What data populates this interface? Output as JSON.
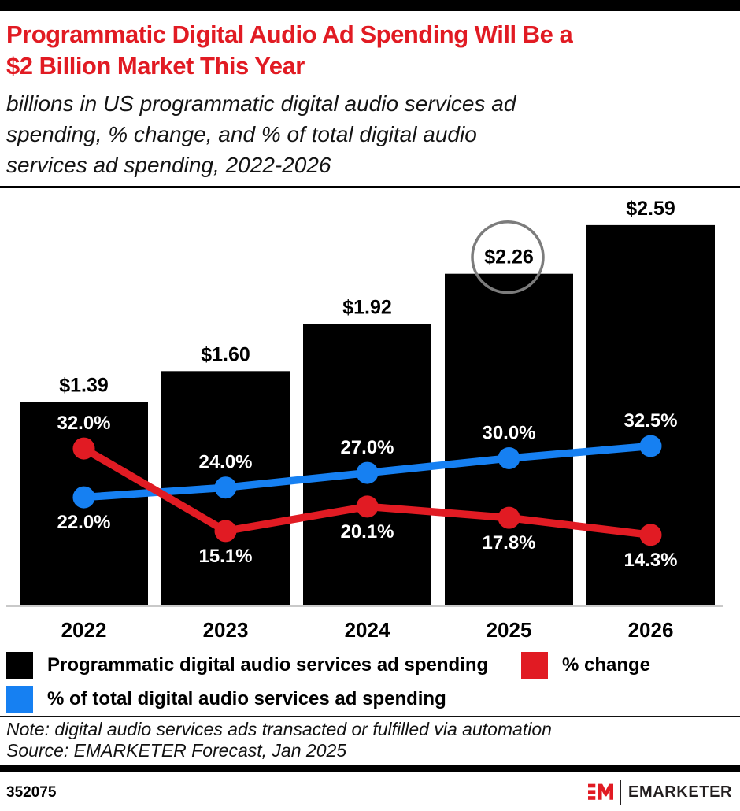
{
  "header": {
    "title_lines": [
      "Programmatic Digital Audio Ad Spending Will Be a",
      "$2 Billion Market This Year"
    ],
    "subtitle_lines": [
      "billions in US programmatic digital audio services ad",
      "spending, % change, and % of total digital audio",
      "services ad spending, 2022-2026"
    ]
  },
  "chart_data": {
    "type": "combo",
    "categories": [
      "2022",
      "2023",
      "2024",
      "2025",
      "2026"
    ],
    "series": [
      {
        "name": "Programmatic digital audio services ad spending",
        "type": "bar",
        "unit": "billions USD",
        "color": "#000000",
        "values": [
          1.39,
          1.6,
          1.92,
          2.26,
          2.59
        ],
        "labels": [
          "$1.39",
          "$1.60",
          "$1.92",
          "$2.26",
          "$2.59"
        ]
      },
      {
        "name": "% change",
        "type": "line",
        "color": "#e11b23",
        "values": [
          32.0,
          15.1,
          20.1,
          17.8,
          14.3
        ],
        "labels": [
          "32.0%",
          "15.1%",
          "20.1%",
          "17.8%",
          "14.3%"
        ],
        "label_side": [
          "above",
          "below",
          "below",
          "below",
          "below"
        ]
      },
      {
        "name": "% of total digital audio services ad spending",
        "type": "line",
        "color": "#1680f2",
        "values": [
          22.0,
          24.0,
          27.0,
          30.0,
          32.5
        ],
        "labels": [
          "22.0%",
          "24.0%",
          "27.0%",
          "30.0%",
          "32.5%"
        ],
        "label_side": [
          "below",
          "above",
          "above",
          "above",
          "above"
        ]
      }
    ],
    "annotation": {
      "type": "circle",
      "category": "2025",
      "highlighted_value": "$2.26",
      "color": "#7c7c7c"
    },
    "axes": {
      "x_labels_visible": true,
      "y_axis_visible": false,
      "gridlines": false,
      "baseline_color": "#c9c9c9"
    },
    "legend_position": "bottom"
  },
  "footnotes": {
    "note": "Note: digital audio services ads transacted or fulfilled via automation",
    "source": "Source: EMARKETER Forecast, Jan 2025"
  },
  "footer": {
    "chart_id": "352075",
    "logo_mark": "EM",
    "brand_name": "EMARKETER"
  },
  "colors": {
    "accent_red": "#e11b23",
    "accent_blue": "#1680f2",
    "bar_black": "#000000",
    "annotation_gray": "#7c7c7c"
  }
}
